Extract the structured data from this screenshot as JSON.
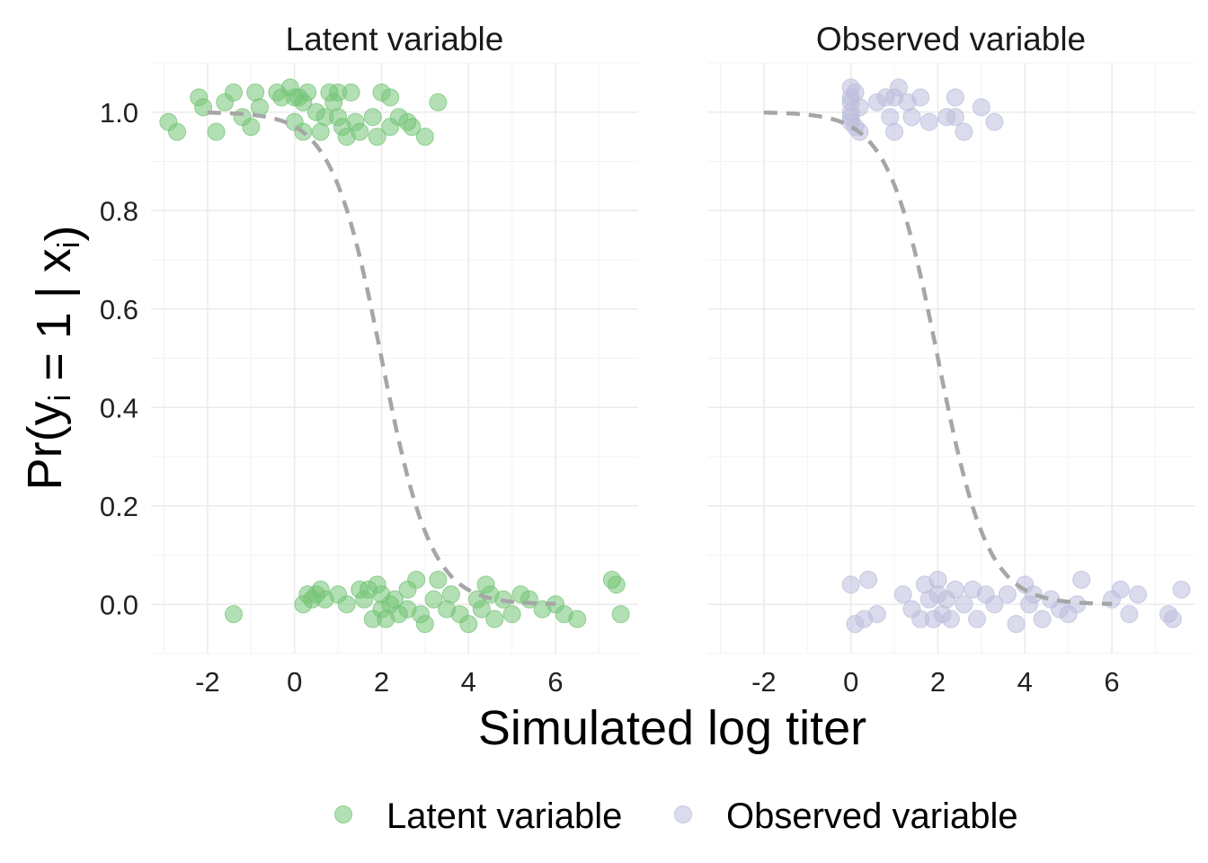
{
  "chart_data": {
    "type": "scatter",
    "xlabel": "Simulated log titer",
    "ylabel": "Pr(y_i = 1 | x_i)",
    "xlim": [
      -3.3,
      7.9
    ],
    "ylim": [
      -0.1,
      1.1
    ],
    "x_ticks": [
      -2,
      0,
      2,
      4,
      6
    ],
    "y_ticks": [
      0.0,
      0.2,
      0.4,
      0.6,
      0.8,
      1.0
    ],
    "y_tick_labels": [
      "0.0",
      "0.2",
      "0.4",
      "0.6",
      "0.8",
      "1.0"
    ],
    "grid": true,
    "legend_position": "bottom",
    "curve": {
      "style": "dashed",
      "color": "#a6a6a6",
      "x_range": [
        -2,
        6
      ]
    },
    "panels": [
      {
        "title": "Latent variable",
        "color": "#74c476",
        "points_upper": [
          [
            -2.9,
            0.98
          ],
          [
            -2.7,
            0.96
          ],
          [
            -2.2,
            1.03
          ],
          [
            -2.1,
            1.01
          ],
          [
            -1.8,
            0.96
          ],
          [
            -1.6,
            1.02
          ],
          [
            -1.4,
            1.04
          ],
          [
            -1.2,
            0.99
          ],
          [
            -1.0,
            0.97
          ],
          [
            -0.9,
            1.04
          ],
          [
            -0.8,
            1.01
          ],
          [
            -0.4,
            1.04
          ],
          [
            -0.3,
            1.03
          ],
          [
            -0.1,
            1.05
          ],
          [
            0.0,
            1.03
          ],
          [
            0.0,
            0.98
          ],
          [
            0.1,
            1.03
          ],
          [
            0.2,
            1.02
          ],
          [
            0.2,
            0.96
          ],
          [
            0.3,
            1.04
          ],
          [
            0.5,
            1.0
          ],
          [
            0.6,
            0.96
          ],
          [
            0.7,
            0.99
          ],
          [
            0.8,
            1.04
          ],
          [
            0.9,
            1.02
          ],
          [
            1.0,
            1.04
          ],
          [
            1.0,
            0.99
          ],
          [
            1.1,
            0.97
          ],
          [
            1.2,
            0.95
          ],
          [
            1.3,
            1.04
          ],
          [
            1.4,
            0.98
          ],
          [
            1.5,
            0.96
          ],
          [
            1.8,
            0.99
          ],
          [
            1.9,
            0.95
          ],
          [
            2.0,
            1.04
          ],
          [
            2.2,
            1.03
          ],
          [
            2.2,
            0.97
          ],
          [
            2.4,
            0.99
          ],
          [
            2.6,
            0.98
          ],
          [
            2.7,
            0.97
          ],
          [
            3.0,
            0.95
          ],
          [
            3.3,
            1.02
          ]
        ],
        "points_lower": [
          [
            -1.4,
            -0.02
          ],
          [
            0.2,
            0.0
          ],
          [
            0.3,
            0.02
          ],
          [
            0.4,
            0.01
          ],
          [
            0.5,
            0.02
          ],
          [
            0.6,
            0.03
          ],
          [
            0.7,
            0.01
          ],
          [
            1.0,
            0.02
          ],
          [
            1.2,
            0.0
          ],
          [
            1.5,
            0.03
          ],
          [
            1.6,
            0.01
          ],
          [
            1.7,
            0.03
          ],
          [
            1.8,
            -0.03
          ],
          [
            1.9,
            0.04
          ],
          [
            2.0,
            -0.01
          ],
          [
            2.0,
            0.02
          ],
          [
            2.1,
            -0.03
          ],
          [
            2.2,
            0.0
          ],
          [
            2.3,
            0.01
          ],
          [
            2.4,
            -0.02
          ],
          [
            2.6,
            0.03
          ],
          [
            2.6,
            -0.01
          ],
          [
            2.8,
            0.05
          ],
          [
            2.9,
            -0.02
          ],
          [
            3.0,
            -0.04
          ],
          [
            3.2,
            0.01
          ],
          [
            3.3,
            0.05
          ],
          [
            3.5,
            -0.01
          ],
          [
            3.6,
            0.02
          ],
          [
            3.8,
            -0.02
          ],
          [
            4.0,
            -0.04
          ],
          [
            4.2,
            0.01
          ],
          [
            4.3,
            -0.01
          ],
          [
            4.4,
            0.04
          ],
          [
            4.5,
            0.02
          ],
          [
            4.6,
            -0.03
          ],
          [
            4.8,
            0.01
          ],
          [
            5.0,
            -0.02
          ],
          [
            5.2,
            0.02
          ],
          [
            5.4,
            0.01
          ],
          [
            5.7,
            -0.01
          ],
          [
            6.0,
            0.0
          ],
          [
            6.2,
            -0.02
          ],
          [
            6.5,
            -0.03
          ],
          [
            7.3,
            0.05
          ],
          [
            7.4,
            0.04
          ],
          [
            7.5,
            -0.02
          ]
        ]
      },
      {
        "title": "Observed variable",
        "color": "#bcbddc",
        "points_upper": [
          [
            0.0,
            1.05
          ],
          [
            0.0,
            1.03
          ],
          [
            0.0,
            1.02
          ],
          [
            0.0,
            1.0
          ],
          [
            0.0,
            0.99
          ],
          [
            0.0,
            0.98
          ],
          [
            0.1,
            1.04
          ],
          [
            0.1,
            0.97
          ],
          [
            0.2,
            1.01
          ],
          [
            0.2,
            0.96
          ],
          [
            0.6,
            1.02
          ],
          [
            0.8,
            1.03
          ],
          [
            0.9,
            0.99
          ],
          [
            1.0,
            1.03
          ],
          [
            1.0,
            0.96
          ],
          [
            1.1,
            1.05
          ],
          [
            1.3,
            1.02
          ],
          [
            1.4,
            0.99
          ],
          [
            1.6,
            1.03
          ],
          [
            1.8,
            0.98
          ],
          [
            2.2,
            0.99
          ],
          [
            2.4,
            1.03
          ],
          [
            2.4,
            0.99
          ],
          [
            2.6,
            0.96
          ],
          [
            3.0,
            1.01
          ],
          [
            3.3,
            0.98
          ]
        ],
        "points_lower": [
          [
            0.0,
            0.04
          ],
          [
            0.1,
            -0.04
          ],
          [
            0.3,
            -0.03
          ],
          [
            0.4,
            0.05
          ],
          [
            0.6,
            -0.02
          ],
          [
            1.2,
            0.02
          ],
          [
            1.4,
            -0.01
          ],
          [
            1.6,
            -0.03
          ],
          [
            1.7,
            0.04
          ],
          [
            1.8,
            0.01
          ],
          [
            1.9,
            -0.03
          ],
          [
            2.0,
            0.05
          ],
          [
            2.0,
            0.02
          ],
          [
            2.1,
            -0.02
          ],
          [
            2.2,
            0.01
          ],
          [
            2.3,
            -0.03
          ],
          [
            2.4,
            0.03
          ],
          [
            2.6,
            0.0
          ],
          [
            2.8,
            0.03
          ],
          [
            2.9,
            -0.03
          ],
          [
            3.1,
            0.02
          ],
          [
            3.3,
            0.0
          ],
          [
            3.6,
            0.02
          ],
          [
            3.8,
            -0.04
          ],
          [
            4.0,
            0.04
          ],
          [
            4.1,
            0.0
          ],
          [
            4.2,
            0.02
          ],
          [
            4.4,
            -0.03
          ],
          [
            4.6,
            0.01
          ],
          [
            4.8,
            -0.01
          ],
          [
            5.0,
            -0.02
          ],
          [
            5.2,
            0.0
          ],
          [
            5.3,
            0.05
          ],
          [
            6.0,
            0.01
          ],
          [
            6.2,
            0.03
          ],
          [
            6.4,
            -0.02
          ],
          [
            6.6,
            0.02
          ],
          [
            7.3,
            -0.02
          ],
          [
            7.4,
            -0.03
          ],
          [
            7.6,
            0.03
          ]
        ]
      }
    ],
    "legend": [
      {
        "label": "Latent variable",
        "color": "#74c476"
      },
      {
        "label": "Observed variable",
        "color": "#bcbddc"
      }
    ]
  }
}
